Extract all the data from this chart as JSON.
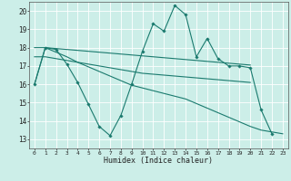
{
  "xlabel": "Humidex (Indice chaleur)",
  "background_color": "#cceee8",
  "grid_color": "#ffffff",
  "line_color": "#1a7a6e",
  "xlim": [
    -0.5,
    23.5
  ],
  "ylim": [
    12.5,
    20.5
  ],
  "yticks": [
    13,
    14,
    15,
    16,
    17,
    18,
    19,
    20
  ],
  "xticks": [
    0,
    1,
    2,
    3,
    4,
    5,
    6,
    7,
    8,
    9,
    10,
    11,
    12,
    13,
    14,
    15,
    16,
    17,
    18,
    19,
    20,
    21,
    22,
    23
  ],
  "x": [
    0,
    1,
    2,
    3,
    4,
    5,
    6,
    7,
    8,
    9,
    10,
    11,
    12,
    13,
    14,
    15,
    16,
    17,
    18,
    19,
    20,
    21,
    22,
    23
  ],
  "line1_y": [
    16.0,
    18.0,
    17.9,
    17.1,
    16.1,
    14.9,
    13.7,
    13.2,
    14.3,
    16.0,
    17.8,
    19.3,
    18.9,
    20.3,
    19.8,
    17.5,
    18.5,
    17.4,
    17.0,
    17.0,
    16.9,
    14.6,
    13.3,
    null
  ],
  "trend1_x": [
    0,
    1,
    2,
    3,
    4,
    5,
    6,
    7,
    8,
    9,
    10,
    11,
    12,
    13,
    14,
    15,
    16,
    17,
    18,
    19,
    20
  ],
  "trend1_y": [
    18.0,
    18.0,
    17.95,
    17.9,
    17.85,
    17.8,
    17.75,
    17.7,
    17.65,
    17.6,
    17.55,
    17.5,
    17.45,
    17.4,
    17.35,
    17.3,
    17.25,
    17.2,
    17.15,
    17.1,
    17.05
  ],
  "trend2_x": [
    0,
    1,
    2,
    3,
    4,
    5,
    6,
    7,
    8,
    9,
    10,
    11,
    12,
    13,
    14,
    15,
    16,
    17,
    18,
    19,
    20
  ],
  "trend2_y": [
    17.5,
    17.5,
    17.4,
    17.3,
    17.2,
    17.1,
    17.0,
    16.9,
    16.8,
    16.7,
    16.6,
    16.55,
    16.5,
    16.45,
    16.4,
    16.35,
    16.3,
    16.25,
    16.2,
    16.15,
    16.1
  ],
  "trend3_x": [
    0,
    1,
    2,
    3,
    4,
    5,
    6,
    7,
    8,
    9,
    10,
    11,
    12,
    13,
    14,
    15,
    16,
    17,
    18,
    19,
    20,
    21,
    22,
    23
  ],
  "trend3_y": [
    16.0,
    18.0,
    17.75,
    17.5,
    17.2,
    16.95,
    16.7,
    16.45,
    16.2,
    15.95,
    15.8,
    15.65,
    15.5,
    15.35,
    15.2,
    14.95,
    14.7,
    14.45,
    14.2,
    13.95,
    13.7,
    13.5,
    13.4,
    13.3
  ]
}
